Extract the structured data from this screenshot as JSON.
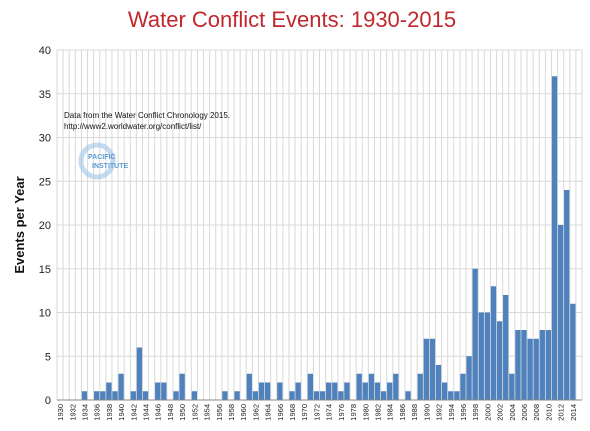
{
  "chart_data": {
    "type": "bar",
    "title": "Water Conflict Events: 1930-2015",
    "ylabel": "Events per Year",
    "xlabel": "",
    "ylim": [
      0,
      40
    ],
    "yticks": [
      0,
      5,
      10,
      15,
      20,
      25,
      30,
      35,
      40
    ],
    "grid": true,
    "legend": "none",
    "bar_color": "#4f81bd",
    "categories": [
      1930,
      1931,
      1932,
      1933,
      1934,
      1935,
      1936,
      1937,
      1938,
      1939,
      1940,
      1941,
      1942,
      1943,
      1944,
      1945,
      1946,
      1947,
      1948,
      1949,
      1950,
      1951,
      1952,
      1953,
      1954,
      1955,
      1956,
      1957,
      1958,
      1959,
      1960,
      1961,
      1962,
      1963,
      1964,
      1965,
      1966,
      1967,
      1968,
      1969,
      1970,
      1971,
      1972,
      1973,
      1974,
      1975,
      1976,
      1977,
      1978,
      1979,
      1980,
      1981,
      1982,
      1983,
      1984,
      1985,
      1986,
      1987,
      1988,
      1989,
      1990,
      1991,
      1992,
      1993,
      1994,
      1995,
      1996,
      1997,
      1998,
      1999,
      2000,
      2001,
      2002,
      2003,
      2004,
      2005,
      2006,
      2007,
      2008,
      2009,
      2010,
      2011,
      2012,
      2013,
      2014,
      2015
    ],
    "values": [
      0,
      0,
      0,
      0,
      1,
      0,
      1,
      1,
      2,
      1,
      3,
      0,
      1,
      6,
      1,
      0,
      2,
      2,
      0,
      1,
      3,
      0,
      1,
      0,
      0,
      0,
      0,
      1,
      0,
      1,
      0,
      3,
      1,
      2,
      2,
      0,
      2,
      0,
      1,
      2,
      0,
      3,
      1,
      1,
      2,
      2,
      1,
      2,
      0,
      3,
      2,
      3,
      2,
      1,
      2,
      3,
      0,
      1,
      0,
      3,
      7,
      7,
      4,
      2,
      1,
      1,
      3,
      5,
      15,
      10,
      10,
      13,
      9,
      12,
      3,
      8,
      8,
      7,
      7,
      8,
      8,
      37,
      20,
      24,
      11,
      0
    ],
    "annotation": {
      "line1": "Data from the Water Conflict Chronology 2015.",
      "line2": "http://www2.worldwater.org/conflict/list/"
    },
    "logo": {
      "line1": "PACIFIC",
      "line2": "INSTITUTE",
      "color": "#5b9bd5"
    }
  }
}
